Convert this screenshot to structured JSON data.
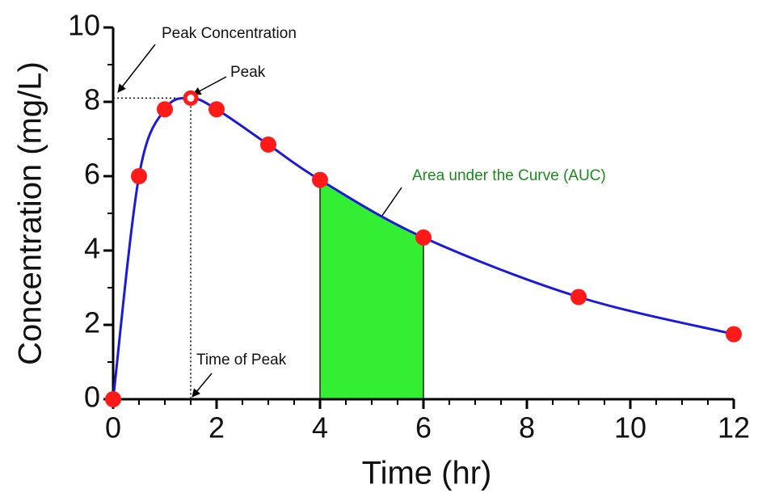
{
  "chart_data": {
    "type": "line",
    "x_label": "Time (hr)",
    "y_label": "Concentration (mg/L)",
    "x": [
      0,
      0.5,
      1,
      1.5,
      2,
      3,
      4,
      6,
      9,
      12
    ],
    "series": [
      {
        "name": "Concentration",
        "color": "#1a1adc",
        "marker_color": "#ff1a1a",
        "values": [
          0,
          6.0,
          7.8,
          8.1,
          7.8,
          6.85,
          5.9,
          4.35,
          2.75,
          1.75
        ]
      }
    ],
    "xlim": [
      0,
      12
    ],
    "xticks": [
      0,
      2,
      4,
      6,
      8,
      10,
      12
    ],
    "xminorticks": [
      0.5,
      1,
      1.5,
      2.5,
      3,
      3.5,
      4.5,
      5,
      5.5,
      6.5,
      7,
      7.5,
      8.5,
      9,
      9.5,
      10.5,
      11,
      11.5
    ],
    "ylim": [
      0,
      10
    ],
    "yticks": [
      0,
      2,
      4,
      6,
      8,
      10
    ],
    "yminorticks": [
      1,
      3,
      5,
      7,
      9
    ],
    "auc": {
      "from": 4,
      "to": 6,
      "color": "#33ee33"
    },
    "annotations": {
      "peak_concentration": "Peak Concentration",
      "peak": "Peak",
      "time_of_peak": "Time of Peak",
      "auc": "Area under the Curve (AUC)"
    }
  }
}
